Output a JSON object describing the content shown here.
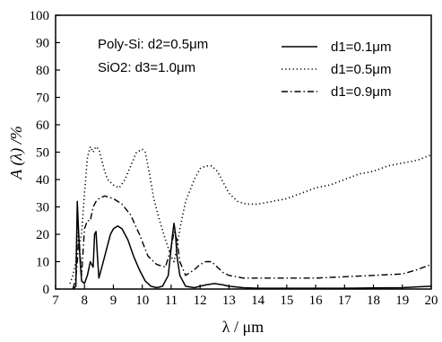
{
  "chart_data": {
    "type": "line",
    "xlabel": "λ / μm",
    "ylabel": "A (λ) /%",
    "xlim": [
      7,
      20
    ],
    "ylim": [
      0,
      100
    ],
    "xticks": [
      7,
      8,
      9,
      10,
      11,
      12,
      13,
      14,
      15,
      16,
      17,
      18,
      19,
      20
    ],
    "yticks": [
      0,
      10,
      20,
      30,
      40,
      50,
      60,
      70,
      80,
      90,
      100
    ],
    "grid": false,
    "legend_position": "top-right",
    "annotations": [
      "Poly-Si: d2=0.5μm",
      "SiO2: d3=1.0μm"
    ],
    "series": [
      {
        "name": "d1=0.1μm",
        "line_style": "solid",
        "x": [
          7.6,
          7.7,
          7.75,
          7.8,
          7.85,
          7.9,
          8.0,
          8.1,
          8.2,
          8.3,
          8.35,
          8.4,
          8.45,
          8.5,
          8.6,
          8.7,
          8.8,
          8.9,
          9.0,
          9.15,
          9.3,
          9.5,
          9.7,
          9.9,
          10.1,
          10.3,
          10.5,
          10.7,
          10.9,
          11.0,
          11.05,
          11.1,
          11.15,
          11.2,
          11.3,
          11.5,
          11.8,
          12.0,
          12.2,
          12.5,
          12.8,
          13.0,
          13.5,
          14,
          15,
          16,
          17,
          18,
          19,
          19.5,
          20
        ],
        "y": [
          0,
          1,
          32,
          20,
          10,
          3,
          2,
          5,
          10,
          8,
          20,
          21,
          12,
          4,
          8,
          12,
          16,
          20,
          22,
          23,
          22,
          18,
          12,
          7,
          3,
          1,
          0.5,
          1,
          5,
          15,
          20,
          24,
          20,
          12,
          5,
          1,
          0.5,
          1,
          1.5,
          2,
          1.5,
          1,
          0.5,
          0.3,
          0.3,
          0.3,
          0.3,
          0.4,
          0.5,
          0.8,
          1
        ]
      },
      {
        "name": "d1=0.5μm",
        "line_style": "dotted",
        "x": [
          7.5,
          7.6,
          7.7,
          7.75,
          7.8,
          7.9,
          8.0,
          8.1,
          8.2,
          8.3,
          8.4,
          8.5,
          8.6,
          8.7,
          8.8,
          9.0,
          9.2,
          9.4,
          9.6,
          9.8,
          10.0,
          10.1,
          10.2,
          10.4,
          10.6,
          10.8,
          11.0,
          11.1,
          11.2,
          11.3,
          11.5,
          11.8,
          12.0,
          12.2,
          12.4,
          12.6,
          12.8,
          13.0,
          13.3,
          13.6,
          14.0,
          14.5,
          15.0,
          15.5,
          16.0,
          16.5,
          17.0,
          17.5,
          18.0,
          18.5,
          19.0,
          19.5,
          20.0
        ],
        "y": [
          2,
          5,
          10,
          25,
          15,
          20,
          35,
          48,
          52,
          50,
          52,
          51,
          47,
          43,
          40,
          38,
          37,
          40,
          45,
          50,
          51,
          50,
          45,
          33,
          25,
          18,
          12,
          10,
          15,
          22,
          32,
          40,
          44,
          45,
          45,
          43,
          39,
          35,
          32,
          31,
          31,
          32,
          33,
          35,
          37,
          38,
          40,
          42,
          43,
          45,
          46,
          47,
          49
        ]
      },
      {
        "name": "d1=0.9μm",
        "line_style": "dash-dot",
        "x": [
          7.6,
          7.7,
          7.75,
          7.8,
          7.9,
          8.0,
          8.1,
          8.2,
          8.3,
          8.4,
          8.5,
          8.7,
          9.0,
          9.3,
          9.6,
          9.9,
          10.2,
          10.5,
          10.8,
          11.0,
          11.1,
          11.2,
          11.3,
          11.5,
          11.8,
          12.0,
          12.2,
          12.4,
          12.6,
          12.8,
          13.0,
          13.5,
          14,
          15,
          16,
          17,
          18,
          19,
          19.5,
          20
        ],
        "y": [
          0,
          4,
          10,
          20,
          5,
          22,
          25,
          25,
          30,
          32,
          33,
          34,
          33,
          31,
          27,
          20,
          12,
          9,
          8,
          15,
          21,
          18,
          10,
          5,
          7,
          9,
          10,
          10,
          8,
          6,
          5,
          4,
          4,
          4,
          4,
          4.5,
          5,
          5.5,
          7,
          9
        ]
      }
    ]
  }
}
